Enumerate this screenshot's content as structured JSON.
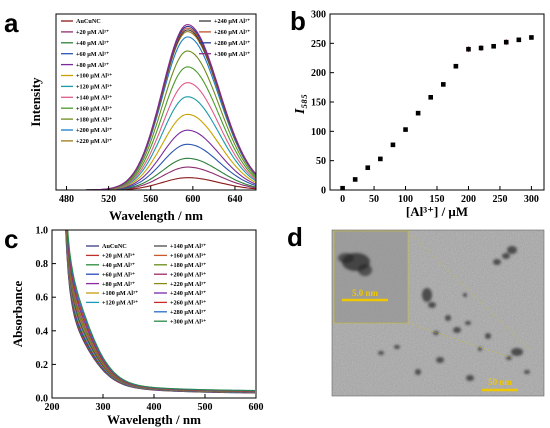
{
  "panels": {
    "a": "a",
    "b": "b",
    "c": "c",
    "d": "d"
  },
  "chart_data": [
    {
      "id": "a",
      "type": "line",
      "title": "",
      "xlabel": "Wavelength / nm",
      "ylabel": "Intensity",
      "xlim": [
        470,
        660
      ],
      "xticks": [
        480,
        520,
        560,
        600,
        640
      ],
      "ylim": [
        0,
        1
      ],
      "yticks_visible": false,
      "peak_x": 595,
      "peak_width": 34,
      "series": [
        {
          "name": "AuCuNC",
          "peak": 0.07,
          "color": "#8b1a1a"
        },
        {
          "name": "+20 μM Al³⁺",
          "peak": 0.13,
          "color": "#8d2d6d"
        },
        {
          "name": "+40 μM Al³⁺",
          "peak": 0.18,
          "color": "#2f7f3a"
        },
        {
          "name": "+60 μM Al³⁺",
          "peak": 0.26,
          "color": "#2c55b0"
        },
        {
          "name": "+80 μM Al³⁺",
          "peak": 0.34,
          "color": "#7a2a9c"
        },
        {
          "name": "+100 μM Al³⁺",
          "peak": 0.43,
          "color": "#c8a200"
        },
        {
          "name": "+120 μM Al³⁺",
          "peak": 0.53,
          "color": "#1a9aa8"
        },
        {
          "name": "+140 μM Al³⁺",
          "peak": 0.61,
          "color": "#e05a8a"
        },
        {
          "name": "+160 μM Al³⁺",
          "peak": 0.7,
          "color": "#4a9a2a"
        },
        {
          "name": "+180 μM Al³⁺",
          "peak": 0.79,
          "color": "#6f8a1a"
        },
        {
          "name": "+200 μM Al³⁺",
          "peak": 0.87,
          "color": "#1a7ec8"
        },
        {
          "name": "+220 μM Al³⁺",
          "peak": 0.9,
          "color": "#9a7a1a"
        },
        {
          "name": "+240 μM Al³⁺",
          "peak": 0.91,
          "color": "#3a3a3a"
        },
        {
          "name": "+260 μM Al³⁺",
          "peak": 0.92,
          "color": "#c0502a"
        },
        {
          "name": "+280 μM Al³⁺",
          "peak": 0.93,
          "color": "#2a3aa0"
        },
        {
          "name": "+300 μM Al³⁺",
          "peak": 0.94,
          "color": "#8a2a8a"
        }
      ]
    },
    {
      "id": "b",
      "type": "scatter",
      "title": "",
      "xlabel": "[Al³⁺] / μM",
      "ylabel": "I₅₈₅",
      "xlim": [
        -20,
        320
      ],
      "ylim": [
        0,
        300
      ],
      "xticks": [
        0,
        50,
        100,
        150,
        200,
        250,
        300
      ],
      "yticks": [
        0,
        50,
        100,
        150,
        200,
        250,
        300
      ],
      "x": [
        0,
        20,
        40,
        60,
        80,
        100,
        120,
        140,
        160,
        180,
        200,
        220,
        240,
        260,
        280,
        300
      ],
      "y": [
        3,
        18,
        38,
        53,
        77,
        103,
        131,
        158,
        180,
        211,
        240,
        242,
        245,
        252,
        256,
        260
      ],
      "err": [
        2,
        2,
        3,
        3,
        3,
        3,
        3,
        3,
        3,
        3,
        5,
        5,
        3,
        5,
        4,
        3
      ]
    },
    {
      "id": "c",
      "type": "line",
      "title": "",
      "xlabel": "Wavelength / nm",
      "ylabel": "Absorbance",
      "xlim": [
        200,
        600
      ],
      "ylim": [
        0,
        1.0
      ],
      "xticks": [
        200,
        300,
        400,
        500,
        600
      ],
      "yticks": [
        0.0,
        0.2,
        0.4,
        0.6,
        0.8,
        1.0
      ],
      "series": [
        {
          "name": "AuCuNC",
          "shoulder": 0.36,
          "tail": 0.026,
          "color": "#3a3a80"
        },
        {
          "name": "+20 μM Al³⁺",
          "shoulder": 0.37,
          "tail": 0.027,
          "color": "#c0302a"
        },
        {
          "name": "+40 μM Al³⁺",
          "shoulder": 0.38,
          "tail": 0.028,
          "color": "#2a8a3a"
        },
        {
          "name": "+60 μM Al³⁺",
          "shoulder": 0.39,
          "tail": 0.029,
          "color": "#2a4ab8"
        },
        {
          "name": "+80 μM Al³⁺",
          "shoulder": 0.4,
          "tail": 0.03,
          "color": "#8a2aa0"
        },
        {
          "name": "+100 μM Al³⁺",
          "shoulder": 0.41,
          "tail": 0.031,
          "color": "#c89a10"
        },
        {
          "name": "+120 μM Al³⁺",
          "shoulder": 0.42,
          "tail": 0.032,
          "color": "#1a9ab8"
        },
        {
          "name": "+140 μM Al³⁺",
          "shoulder": 0.43,
          "tail": 0.033,
          "color": "#4a4a4a"
        },
        {
          "name": "+160 μM Al³⁺",
          "shoulder": 0.45,
          "tail": 0.034,
          "color": "#c85a2a"
        },
        {
          "name": "+180 μM Al³⁺",
          "shoulder": 0.46,
          "tail": 0.035,
          "color": "#6a8a1a"
        },
        {
          "name": "+200 μM Al³⁺",
          "shoulder": 0.48,
          "tail": 0.036,
          "color": "#a02a6a"
        },
        {
          "name": "+220 μM Al³⁺",
          "shoulder": 0.49,
          "tail": 0.037,
          "color": "#8a8a1a"
        },
        {
          "name": "+240 μM Al³⁺",
          "shoulder": 0.51,
          "tail": 0.038,
          "color": "#7a2aa8"
        },
        {
          "name": "+260 μM Al³⁺",
          "shoulder": 0.53,
          "tail": 0.039,
          "color": "#c82a2a"
        },
        {
          "name": "+280 μM Al³⁺",
          "shoulder": 0.55,
          "tail": 0.04,
          "color": "#2a6ac8"
        },
        {
          "name": "+300 μM Al³⁺",
          "shoulder": 0.57,
          "tail": 0.041,
          "color": "#2a8a4a"
        }
      ]
    }
  ],
  "micrograph": {
    "scale_inset": "5.0 nm",
    "scale_main": "50 nm",
    "bg_color": "#a8a8a8",
    "scale_color": "#f0c800"
  }
}
